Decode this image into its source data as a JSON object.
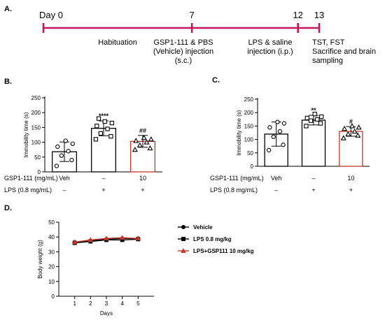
{
  "panels": {
    "A": "A.",
    "B": "B.",
    "C": "C.",
    "D": "D."
  },
  "colors": {
    "timeline": "#c2185b",
    "lps_gsp_bar": "#c0392b",
    "lps_gsp_line": "#c0392b",
    "axis": "#000000"
  },
  "timeline": {
    "days": [
      {
        "label": "Day 0",
        "day": 0
      },
      {
        "label": "7",
        "day": 7
      },
      {
        "label": "12",
        "day": 12
      },
      {
        "label": "13",
        "day": 13
      }
    ],
    "phases": [
      {
        "lines": [
          "Habituation"
        ]
      },
      {
        "lines": [
          "GSP1-111  & PBS",
          "(Vehicle) injection",
          "(s.c.)"
        ]
      },
      {
        "lines": [
          "LPS & saline",
          "injection (i.p.)"
        ]
      },
      {
        "lines": [
          "TST, FST",
          "Sacrifice and brain",
          "sampling"
        ]
      }
    ]
  },
  "conditions": {
    "gsp_label": "GSP1-111 (mg/mL)",
    "lps_label": "LPS (0.8 mg/mL)",
    "gsp_values": [
      "Veh",
      "–",
      "10"
    ],
    "lps_values": [
      "–",
      "+",
      "+"
    ]
  },
  "chart_data": [
    {
      "panel": "B",
      "type": "bar",
      "ylabel": "Immobility time (s)",
      "ylim": [
        0,
        250
      ],
      "yticks": [
        0,
        50,
        100,
        150,
        200,
        250
      ],
      "groups": [
        {
          "mean": 68,
          "sd": 33,
          "points": [
            20,
            40,
            55,
            70,
            85,
            95,
            105
          ],
          "marker": "circle",
          "sig": ""
        },
        {
          "mean": 147,
          "sd": 25,
          "points": [
            110,
            120,
            130,
            145,
            155,
            165,
            170,
            180
          ],
          "marker": "square",
          "sig": "****"
        },
        {
          "mean": 103,
          "sd": 20,
          "points": [
            75,
            80,
            90,
            100,
            105,
            110,
            115
          ],
          "marker": "triangle",
          "sig": "##"
        }
      ]
    },
    {
      "panel": "C",
      "type": "bar",
      "ylabel": "Immobility time (s)",
      "ylim": [
        0,
        250
      ],
      "yticks": [
        0,
        50,
        100,
        150,
        200,
        250
      ],
      "groups": [
        {
          "mean": 120,
          "sd": 45,
          "points": [
            60,
            80,
            110,
            130,
            145,
            160,
            165
          ],
          "marker": "circle",
          "sig": ""
        },
        {
          "mean": 172,
          "sd": 18,
          "points": [
            150,
            160,
            170,
            175,
            180,
            185,
            195
          ],
          "marker": "square",
          "sig": "**"
        },
        {
          "mean": 130,
          "sd": 18,
          "points": [
            105,
            115,
            120,
            130,
            140,
            145,
            150
          ],
          "marker": "triangle",
          "sig": "#"
        }
      ]
    },
    {
      "panel": "D",
      "type": "line",
      "xlabel": "Days",
      "ylabel": "Body weight (g)",
      "x": [
        1,
        2,
        3,
        4,
        5
      ],
      "xlim": [
        0,
        6
      ],
      "ylim": [
        0,
        50
      ],
      "yticks": [
        0,
        10,
        20,
        30,
        40,
        50
      ],
      "legend": "right",
      "series": [
        {
          "name": "Vehicle",
          "values": [
            36.5,
            37.5,
            38.5,
            39.0,
            39.0
          ],
          "marker": "circle",
          "color": "#000000"
        },
        {
          "name": "LPS 0.8 mg/kg",
          "values": [
            36.0,
            37.0,
            38.0,
            38.0,
            38.5
          ],
          "marker": "square",
          "color": "#000000"
        },
        {
          "name": "LPS+GSP111 10 mg/kg",
          "values": [
            36.5,
            38.0,
            39.0,
            39.5,
            39.0
          ],
          "marker": "triangle",
          "color": "#c0392b"
        }
      ]
    }
  ]
}
